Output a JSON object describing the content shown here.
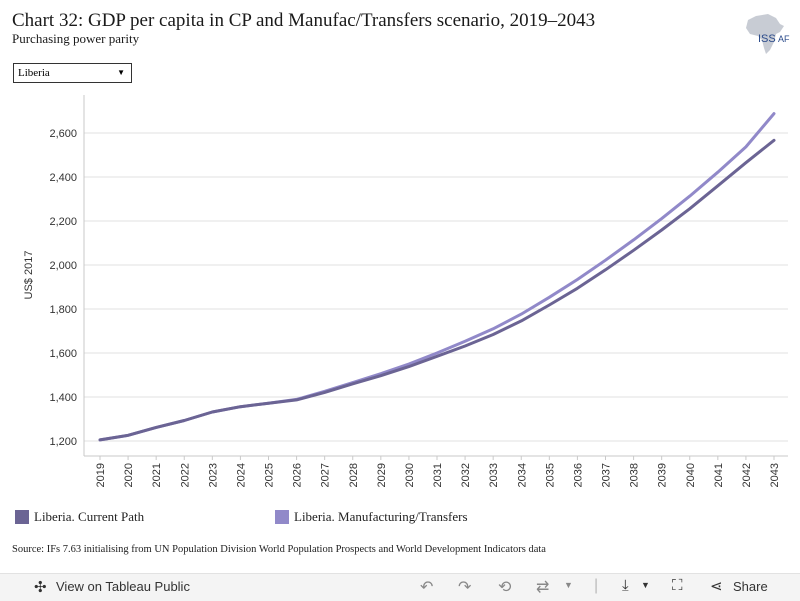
{
  "header": {
    "title": "Chart 32: GDP per capita in CP and Manufac/Transfers scenario, 2019–2043",
    "subtitle": "Purchasing power parity",
    "logo_text_1": "ISS",
    "logo_text_2": "AF"
  },
  "filter": {
    "selected": "Liberia"
  },
  "chart_data": {
    "type": "line",
    "ylabel": "US$ 2017",
    "ylim": [
      1150,
      2780
    ],
    "yticks": [
      1200,
      1400,
      1600,
      1800,
      2000,
      2200,
      2400,
      2600
    ],
    "ytick_labels": [
      "1,200",
      "1,400",
      "1,600",
      "1,800",
      "2,000",
      "2,200",
      "2,400",
      "2,600"
    ],
    "categories": [
      "2019",
      "2020",
      "2021",
      "2022",
      "2023",
      "2024",
      "2025",
      "2026",
      "2027",
      "2028",
      "2029",
      "2030",
      "2031",
      "2032",
      "2033",
      "2034",
      "2035",
      "2036",
      "2037",
      "2038",
      "2039",
      "2040",
      "2041",
      "2042",
      "2043"
    ],
    "grid": true,
    "series": [
      {
        "name": "Liberia. Current Path",
        "color": "#6b6494",
        "values": [
          1205,
          1226,
          1262,
          1293,
          1332,
          1356,
          1372,
          1387,
          1421,
          1460,
          1497,
          1538,
          1585,
          1632,
          1684,
          1746,
          1818,
          1894,
          1978,
          2067,
          2159,
          2256,
          2360,
          2465,
          2567
        ]
      },
      {
        "name": "Liberia. Manufacturing/Transfers",
        "color": "#9189c9",
        "values": [
          1205,
          1226,
          1262,
          1293,
          1332,
          1356,
          1372,
          1389,
          1426,
          1466,
          1506,
          1550,
          1600,
          1653,
          1710,
          1777,
          1853,
          1934,
          2022,
          2114,
          2211,
          2313,
          2422,
          2537,
          2688
        ]
      }
    ]
  },
  "source": "Source: IFs 7.63 initialising from UN Population Division World Population Prospects and World Development Indicators data",
  "toolbar": {
    "view_label": "View on Tableau Public",
    "share_label": "Share"
  }
}
